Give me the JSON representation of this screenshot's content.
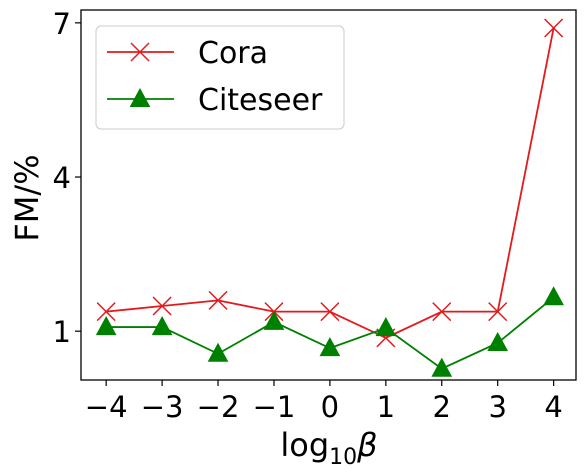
{
  "chart_data": {
    "type": "line",
    "x": [
      -4,
      -3,
      -2,
      -1,
      0,
      1,
      2,
      3,
      4
    ],
    "x_tick_labels": [
      "−4",
      "−3",
      "−2",
      "−1",
      "0",
      "1",
      "2",
      "3",
      "4"
    ],
    "y_ticks": [
      1,
      4,
      7
    ],
    "y_tick_labels": [
      "1",
      "4",
      "7"
    ],
    "xlabel": "log10β",
    "xlabel_parts": {
      "base": "log",
      "sub": "10",
      "greek": "β"
    },
    "ylabel": "FM/%",
    "xlim": [
      -4.45,
      4.4
    ],
    "ylim": [
      0.05,
      7.25
    ],
    "grid": false,
    "legend_position": "top-left",
    "series": [
      {
        "name": "Cora",
        "color": "#e31a1c",
        "marker": "x",
        "values": [
          1.38,
          1.49,
          1.6,
          1.38,
          1.38,
          0.87,
          1.38,
          1.38,
          6.9
        ]
      },
      {
        "name": "Citeseer",
        "color": "#008000",
        "marker": "triangle",
        "values": [
          1.08,
          1.08,
          0.56,
          1.18,
          0.67,
          1.06,
          0.27,
          0.77,
          1.66
        ]
      }
    ]
  }
}
